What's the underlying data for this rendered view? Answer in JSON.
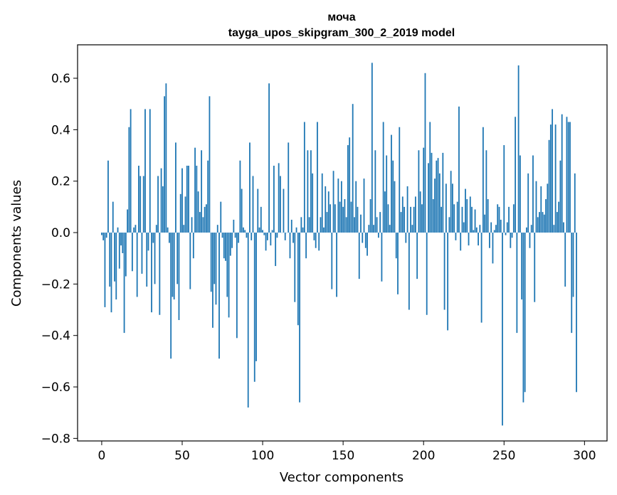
{
  "chart_data": {
    "type": "bar",
    "title": "моча",
    "subtitle": "tayga_upos_skipgram_300_2_2019 model",
    "xlabel": "Vector components",
    "ylabel": "Components values",
    "xlim": [
      -15,
      314
    ],
    "ylim": [
      -0.81,
      0.73
    ],
    "xticks": [
      0,
      50,
      100,
      150,
      200,
      250,
      300
    ],
    "xtick_labels": [
      "0",
      "50",
      "100",
      "150",
      "200",
      "250",
      "300"
    ],
    "yticks": [
      -0.8,
      -0.6,
      -0.4,
      -0.2,
      0.0,
      0.2,
      0.4,
      0.6
    ],
    "ytick_labels": [
      "−0.8",
      "−0.6",
      "−0.4",
      "−0.2",
      "0.0",
      "0.2",
      "0.4",
      "0.6"
    ],
    "bar_color": "#1f77b4",
    "values": [
      -0.01,
      -0.03,
      -0.29,
      -0.02,
      0.28,
      -0.21,
      -0.31,
      0.12,
      -0.19,
      -0.26,
      0.02,
      -0.14,
      -0.05,
      -0.08,
      -0.39,
      -0.17,
      0.09,
      0.41,
      0.48,
      -0.15,
      0.02,
      0.03,
      -0.25,
      0.26,
      0.22,
      -0.16,
      0.22,
      0.48,
      -0.21,
      -0.07,
      0.48,
      -0.31,
      -0.04,
      -0.2,
      0.03,
      0.22,
      -0.32,
      0.25,
      0.18,
      0.53,
      0.58,
      0.02,
      -0.04,
      -0.49,
      -0.25,
      -0.26,
      0.35,
      -0.2,
      -0.34,
      0.15,
      0.25,
      0.03,
      0.14,
      0.26,
      0.26,
      -0.22,
      0.06,
      -0.1,
      0.33,
      0.26,
      0.16,
      0.08,
      0.32,
      0.06,
      0.1,
      0.11,
      0.28,
      0.53,
      -0.23,
      -0.37,
      -0.2,
      -0.28,
      0.03,
      -0.49,
      0.12,
      -0.02,
      -0.1,
      -0.11,
      -0.25,
      -0.33,
      -0.09,
      -0.06,
      0.05,
      -0.02,
      -0.41,
      -0.04,
      0.28,
      0.17,
      0.02,
      0.01,
      -0.02,
      -0.68,
      0.35,
      -0.03,
      0.22,
      -0.58,
      -0.5,
      0.17,
      0.02,
      0.1,
      0.01,
      -0.01,
      -0.07,
      -0.03,
      0.58,
      -0.05,
      0.01,
      0.26,
      -0.13,
      -0.02,
      0.27,
      0.22,
      0.0,
      0.17,
      -0.03,
      0.0,
      0.35,
      -0.1,
      0.05,
      -0.04,
      -0.27,
      0.02,
      -0.36,
      -0.66,
      0.06,
      0.02,
      0.43,
      -0.1,
      0.32,
      0.06,
      0.32,
      0.23,
      -0.03,
      -0.06,
      0.43,
      -0.07,
      0.06,
      0.23,
      0.02,
      0.18,
      0.08,
      0.16,
      0.11,
      -0.22,
      0.24,
      0.11,
      -0.25,
      0.21,
      0.12,
      0.2,
      0.1,
      0.13,
      0.06,
      0.34,
      0.37,
      0.12,
      0.5,
      0.06,
      0.2,
      0.1,
      -0.18,
      0.07,
      -0.04,
      0.21,
      -0.06,
      -0.09,
      0.03,
      0.13,
      0.66,
      0.03,
      0.32,
      0.06,
      -0.02,
      0.08,
      -0.19,
      0.43,
      0.16,
      0.3,
      0.11,
      0.03,
      0.38,
      0.28,
      0.2,
      -0.1,
      -0.24,
      0.41,
      0.08,
      0.14,
      0.1,
      -0.04,
      0.18,
      -0.3,
      0.1,
      0.03,
      0.1,
      0.14,
      -0.18,
      0.32,
      0.16,
      0.11,
      0.33,
      0.62,
      -0.32,
      0.27,
      0.43,
      0.31,
      0.13,
      0.21,
      0.28,
      0.29,
      0.23,
      0.1,
      0.31,
      -0.3,
      0.19,
      -0.38,
      0.06,
      0.24,
      0.19,
      0.11,
      -0.03,
      0.12,
      0.49,
      -0.07,
      0.1,
      0.04,
      0.17,
      0.13,
      -0.05,
      0.14,
      0.1,
      0.01,
      0.09,
      0.02,
      -0.05,
      0.03,
      -0.35,
      0.41,
      0.07,
      0.32,
      0.13,
      -0.06,
      0.04,
      -0.12,
      0.01,
      0.03,
      0.11,
      0.1,
      0.05,
      -0.75,
      0.34,
      -0.01,
      0.04,
      0.1,
      -0.06,
      -0.02,
      0.11,
      0.45,
      -0.39,
      0.65,
      0.3,
      -0.26,
      -0.66,
      -0.62,
      0.02,
      0.23,
      -0.06,
      0.03,
      0.3,
      -0.27,
      0.2,
      0.06,
      0.08,
      0.18,
      0.08,
      0.07,
      0.13,
      0.19,
      0.36,
      0.42,
      0.48,
      0.03,
      0.42,
      0.08,
      0.12,
      0.28,
      0.46,
      0.04,
      -0.21,
      0.45,
      0.43,
      0.43,
      -0.39,
      -0.25,
      0.23,
      -0.62
    ]
  }
}
